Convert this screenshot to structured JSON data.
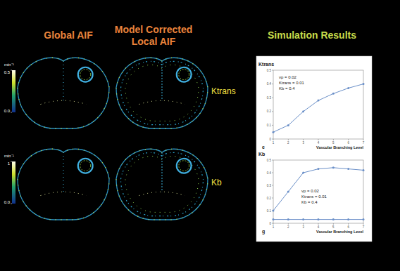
{
  "slide": {
    "titles": {
      "global": "Global AIF",
      "local": [
        "Model Corrected",
        "Local AIF"
      ],
      "simulation": "Simulation Results"
    },
    "rows": [
      {
        "label": "Ktrans",
        "colorbar": {
          "unit": "min⁻¹",
          "range": [
            0,
            0.5
          ],
          "ticks": [
            {
              "value": 0,
              "label": "0.0"
            },
            0.5
          ]
        }
      },
      {
        "label": "Kb",
        "colorbar": {
          "unit": "min⁻¹",
          "range": [
            0,
            1
          ],
          "ticks": [
            {
              "value": 0,
              "label": "0.0"
            },
            1
          ]
        }
      }
    ]
  },
  "chart_data": [
    {
      "type": "line",
      "ylabel": "Ktrans",
      "xlabel": "Vascular Branching Level",
      "panel": "e",
      "annotations": [
        "vp = 0.02",
        "Ktrans = 0.01",
        "Kb = 0.4"
      ],
      "x": [
        1,
        2,
        3,
        4,
        5,
        6,
        7
      ],
      "series": [
        {
          "color": "#6a8fc8",
          "values": [
            0.05,
            0.1,
            0.2,
            0.28,
            0.33,
            0.37,
            0.4
          ]
        }
      ],
      "xlim": [
        1,
        7
      ],
      "xticks": [
        1,
        2,
        3,
        4,
        5,
        6,
        7
      ],
      "ylim": [
        0,
        0.5
      ],
      "yticks": [
        0,
        0.1,
        0.2,
        0.3,
        0.4,
        0.5
      ],
      "marker": "circle"
    },
    {
      "type": "line",
      "ylabel": "Kb",
      "xlabel": "Vascular Branching Level",
      "panel": "g",
      "annotations": [
        "vp = 0.02",
        "Ktrans = 0.01",
        "Kb = 0.4"
      ],
      "x": [
        1,
        2,
        3,
        4,
        5,
        6,
        7
      ],
      "series": [
        {
          "color": "#6a8fc8",
          "values": [
            0.1,
            0.25,
            0.4,
            0.43,
            0.44,
            0.43,
            0.42
          ]
        },
        {
          "color": "#6a8fc8",
          "values": [
            0.03,
            0.03,
            0.03,
            0.03,
            0.03,
            0.03,
            0.03
          ]
        }
      ],
      "xlim": [
        1,
        7
      ],
      "xticks": [
        1,
        2,
        3,
        4,
        5,
        6,
        7
      ],
      "ylim": [
        0,
        0.5
      ],
      "yticks": [
        0,
        0.1,
        0.2,
        0.3,
        0.4,
        0.5
      ],
      "marker": "circle"
    }
  ]
}
